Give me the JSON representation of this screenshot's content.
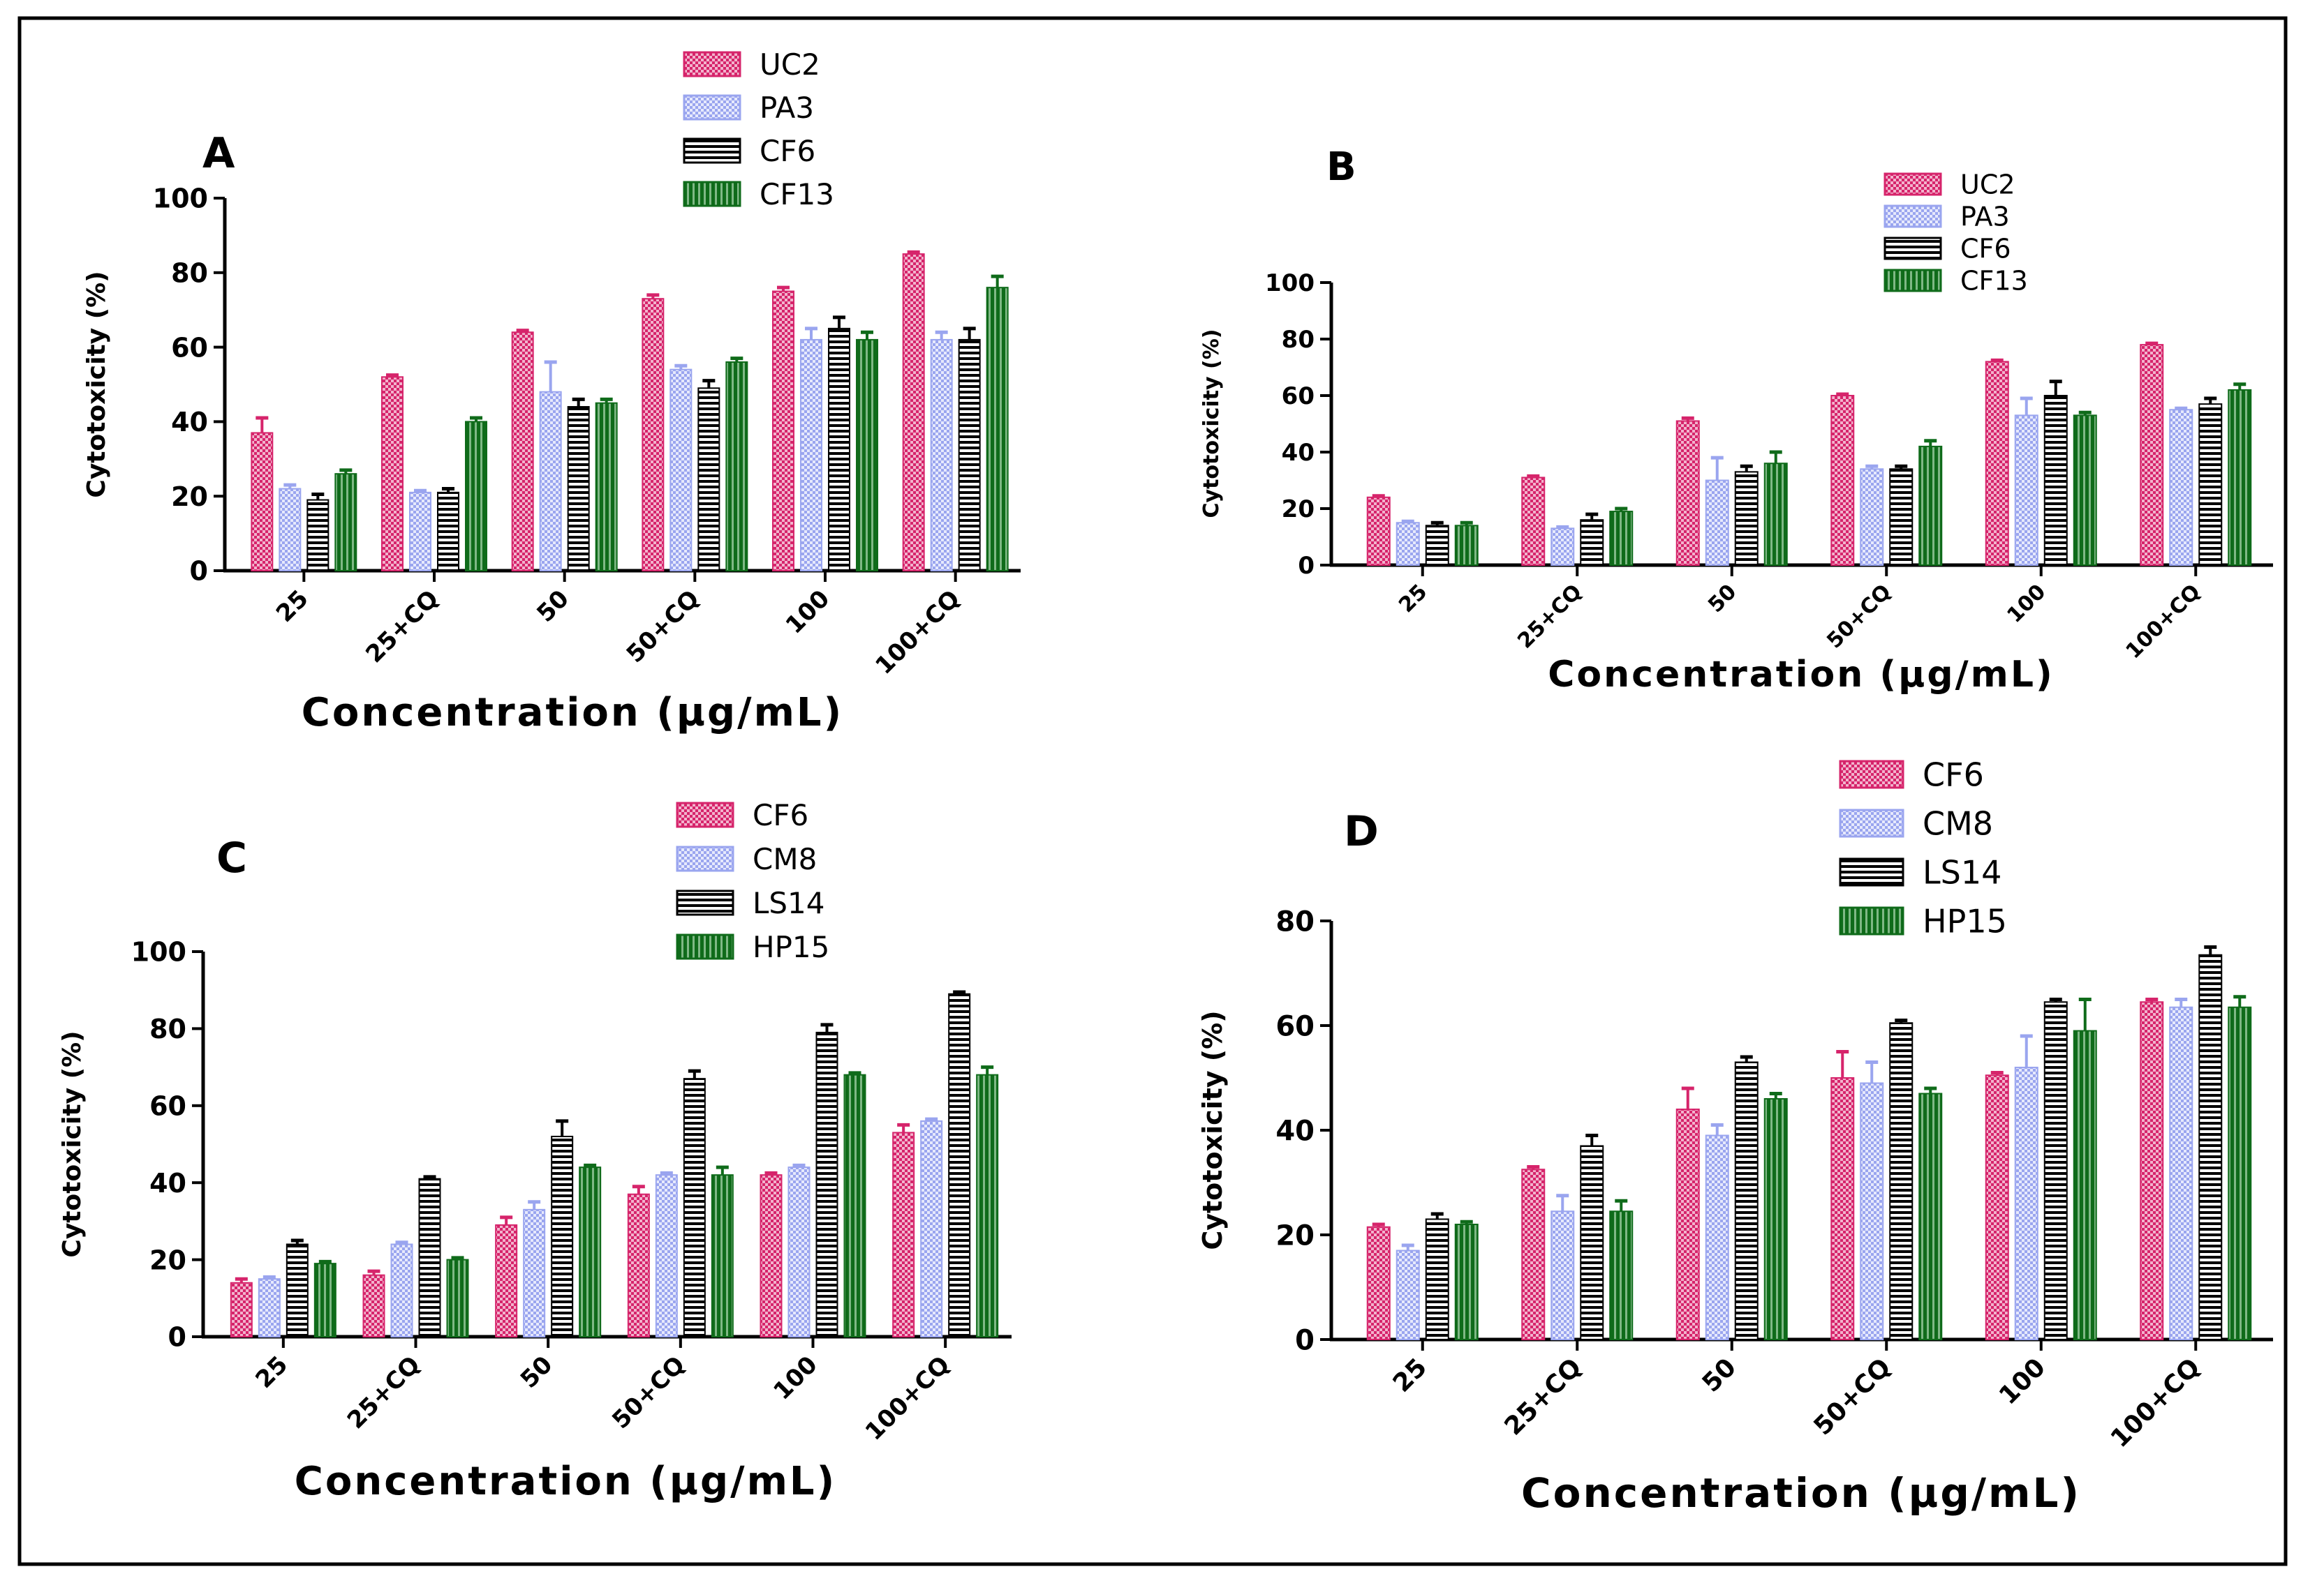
{
  "figure": {
    "series_colors": {
      "pink": "#d6246b",
      "lavender": "#9aa5ef",
      "black": "#000000",
      "green": "#0f6b1a"
    }
  },
  "chart_data": [
    {
      "panel": "A",
      "type": "bar",
      "title": "",
      "xlabel": "Concentration (µg/mL)",
      "ylabel": "Cytotoxicity (%)",
      "ylim": [
        0,
        100
      ],
      "yticks": [
        0,
        20,
        40,
        60,
        80,
        100
      ],
      "categories": [
        "25",
        "25+CQ",
        "50",
        "50+CQ",
        "100",
        "100+CQ"
      ],
      "legend_position": "top-center",
      "series": [
        {
          "name": "UC2",
          "color": "#d6246b",
          "values": [
            37,
            52,
            64,
            73,
            75,
            85
          ],
          "errors": [
            4,
            0.5,
            0.5,
            1,
            1,
            0.5
          ]
        },
        {
          "name": "PA3",
          "color": "#9aa5ef",
          "values": [
            22,
            21,
            48,
            54,
            62,
            62
          ],
          "errors": [
            1,
            0.5,
            8,
            1,
            3,
            2
          ]
        },
        {
          "name": "CF6",
          "color": "#000000",
          "values": [
            19,
            21,
            44,
            49,
            65,
            62
          ],
          "errors": [
            1.5,
            1,
            2,
            2,
            3,
            3
          ]
        },
        {
          "name": "CF13",
          "color": "#0f6b1a",
          "values": [
            26,
            40,
            45,
            56,
            62,
            76
          ],
          "errors": [
            1,
            1,
            1,
            1,
            2,
            3
          ]
        }
      ]
    },
    {
      "panel": "B",
      "type": "bar",
      "title": "",
      "xlabel": "Concentration (µg/mL)",
      "ylabel": "Cytotoxicity (%)",
      "ylim": [
        0,
        100
      ],
      "yticks": [
        0,
        20,
        40,
        60,
        80,
        100
      ],
      "categories": [
        "25",
        "25+CQ",
        "50",
        "50+CQ",
        "100",
        "100+CQ"
      ],
      "legend_position": "top-right",
      "series": [
        {
          "name": "UC2",
          "color": "#d6246b",
          "values": [
            24,
            31,
            51,
            60,
            72,
            78
          ],
          "errors": [
            0.5,
            0.5,
            1,
            0.5,
            0.5,
            0.5
          ]
        },
        {
          "name": "PA3",
          "color": "#9aa5ef",
          "values": [
            15,
            13,
            30,
            34,
            53,
            55
          ],
          "errors": [
            0.5,
            0.5,
            8,
            1,
            6,
            0.5
          ]
        },
        {
          "name": "CF6",
          "color": "#000000",
          "values": [
            14,
            16,
            33,
            34,
            60,
            57
          ],
          "errors": [
            1,
            2,
            2,
            1,
            5,
            2
          ]
        },
        {
          "name": "CF13",
          "color": "#0f6b1a",
          "values": [
            14,
            19,
            36,
            42,
            53,
            62
          ],
          "errors": [
            1,
            1,
            4,
            2,
            1,
            2
          ]
        }
      ]
    },
    {
      "panel": "C",
      "type": "bar",
      "title": "",
      "xlabel": "Concentration (µg/mL)",
      "ylabel": "Cytotoxicity (%)",
      "ylim": [
        0,
        100
      ],
      "yticks": [
        0,
        20,
        40,
        60,
        80,
        100
      ],
      "categories": [
        "25",
        "25+CQ",
        "50",
        "50+CQ",
        "100",
        "100+CQ"
      ],
      "legend_position": "top-right",
      "series": [
        {
          "name": "CF6",
          "color": "#d6246b",
          "values": [
            14,
            16,
            29,
            37,
            42,
            53
          ],
          "errors": [
            1,
            1,
            2,
            2,
            0.5,
            2
          ]
        },
        {
          "name": "CM8",
          "color": "#9aa5ef",
          "values": [
            15,
            24,
            33,
            42,
            44,
            56
          ],
          "errors": [
            0.5,
            0.5,
            2,
            0.5,
            0.5,
            0.5
          ]
        },
        {
          "name": "LS14",
          "color": "#000000",
          "values": [
            24,
            41,
            52,
            67,
            79,
            89
          ],
          "errors": [
            1,
            0.5,
            4,
            2,
            2,
            0.5
          ]
        },
        {
          "name": "HP15",
          "color": "#0f6b1a",
          "values": [
            19,
            20,
            44,
            42,
            68,
            68
          ],
          "errors": [
            0.5,
            0.5,
            0.5,
            2,
            0.5,
            2
          ]
        }
      ]
    },
    {
      "panel": "D",
      "type": "bar",
      "title": "",
      "xlabel": "Concentration (µg/mL)",
      "ylabel": "Cytotoxicity (%)",
      "ylim": [
        0,
        80
      ],
      "yticks": [
        0,
        20,
        40,
        60,
        80
      ],
      "categories": [
        "25",
        "25+CQ",
        "50",
        "50+CQ",
        "100",
        "100+CQ"
      ],
      "legend_position": "top-center",
      "series": [
        {
          "name": "CF6",
          "color": "#d6246b",
          "values": [
            21.5,
            32.5,
            44,
            50,
            50.5,
            64.5
          ],
          "errors": [
            0.5,
            0.5,
            4,
            5,
            0.5,
            0.5
          ]
        },
        {
          "name": "CM8",
          "color": "#9aa5ef",
          "values": [
            17,
            24.5,
            39,
            49,
            52,
            63.5
          ],
          "errors": [
            1,
            3,
            2,
            4,
            6,
            1.5
          ]
        },
        {
          "name": "LS14",
          "color": "#000000",
          "values": [
            23,
            37,
            53,
            60.5,
            64.5,
            73.5
          ],
          "errors": [
            1,
            2,
            1,
            0.5,
            0.5,
            1.5
          ]
        },
        {
          "name": "HP15",
          "color": "#0f6b1a",
          "values": [
            22,
            24.5,
            46,
            47,
            59,
            63.5
          ],
          "errors": [
            0.5,
            2,
            1,
            1,
            6,
            2
          ]
        }
      ]
    }
  ]
}
